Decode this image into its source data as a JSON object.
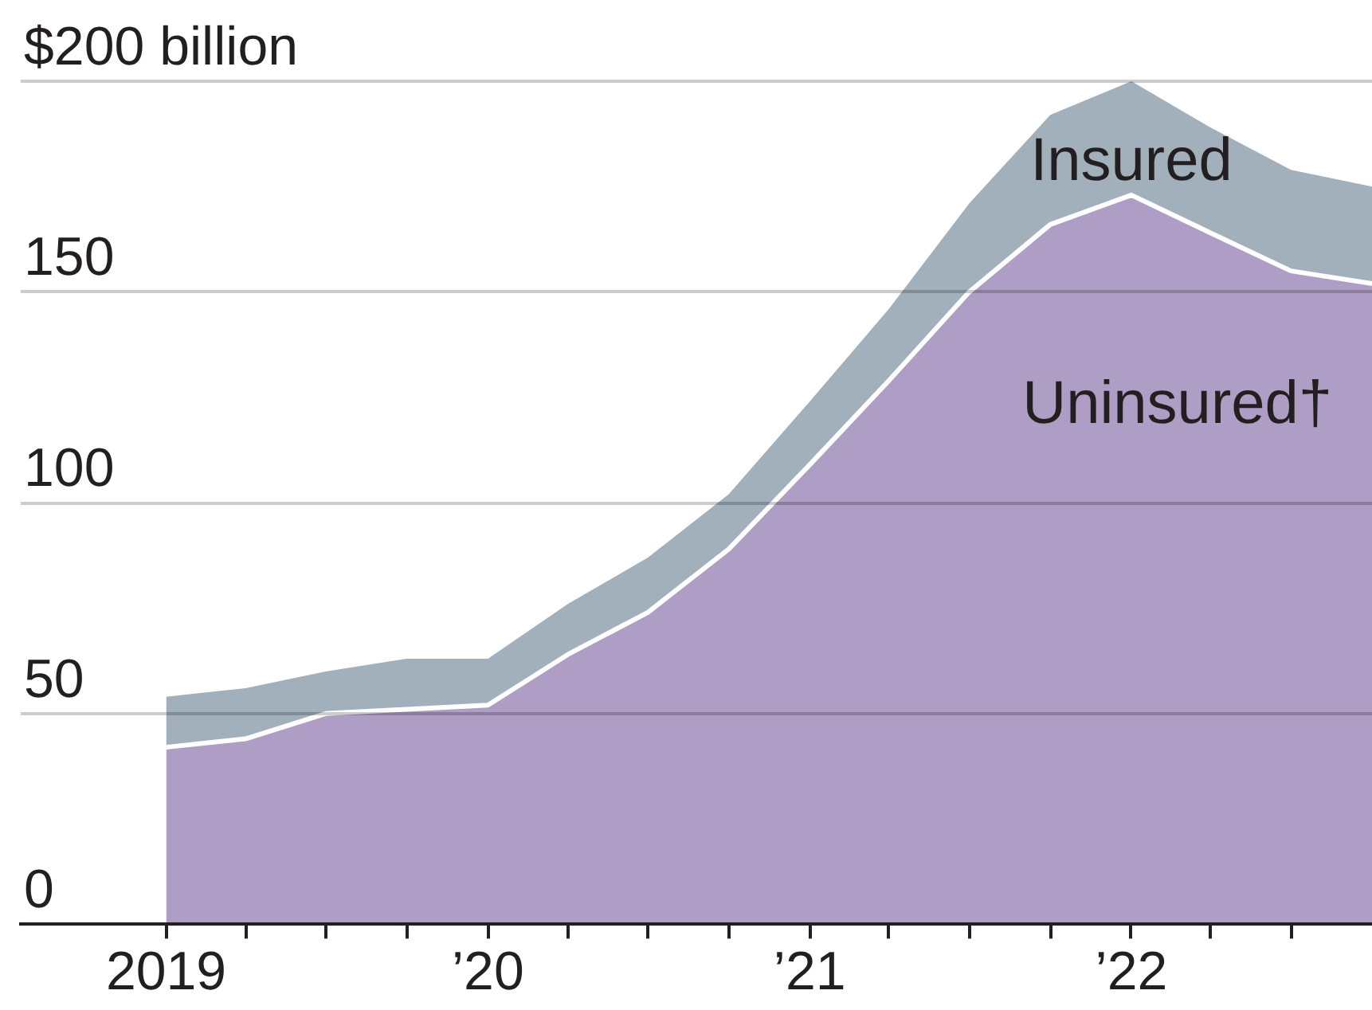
{
  "chart_data": {
    "type": "area",
    "stacked": true,
    "grid": "y",
    "ylim": [
      0,
      200
    ],
    "yticks": [
      0,
      50,
      100,
      150,
      {
        "value": 200,
        "label": "$200 billion"
      }
    ],
    "xlim": [
      "2018-07-20",
      "2022-10"
    ],
    "xticks": [
      {
        "value": "2019",
        "label": "2019"
      },
      {
        "value": "2019-04",
        "label": null
      },
      {
        "value": "2019-07",
        "label": null
      },
      {
        "value": "2019-10",
        "label": null
      },
      {
        "value": "2020",
        "label": "’20"
      },
      {
        "value": "2020-04",
        "label": null
      },
      {
        "value": "2020-07",
        "label": null
      },
      {
        "value": "2020-10",
        "label": null
      },
      {
        "value": "2021",
        "label": "’21"
      },
      {
        "value": "2021-04",
        "label": null
      },
      {
        "value": "2021-07",
        "label": null
      },
      {
        "value": "2021-10",
        "label": null
      },
      {
        "value": "2022",
        "label": "’22"
      },
      {
        "value": "2022-04",
        "label": null
      },
      {
        "value": "2022-07",
        "label": null
      }
    ],
    "x": [
      "2019-01",
      "2019-04",
      "2019-07",
      "2019-10",
      "2020-01",
      "2020-04",
      "2020-07",
      "2020-10",
      "2021-01",
      "2021-04",
      "2021-07",
      "2021-10",
      "2022-01",
      "2022-04",
      "2022-07",
      "2022-10"
    ],
    "series": [
      {
        "name": "Uninsured†",
        "color": "#ae9dc4",
        "values": [
          42,
          44,
          50,
          51,
          52,
          64,
          74,
          89,
          109,
          129,
          150,
          166,
          173,
          164,
          155,
          152
        ]
      },
      {
        "name": "Insured",
        "color": "#a2b0bc",
        "values": [
          12,
          12,
          10,
          12,
          11,
          12,
          13,
          13,
          15,
          17,
          21,
          26,
          27,
          25,
          24,
          23
        ]
      }
    ]
  }
}
